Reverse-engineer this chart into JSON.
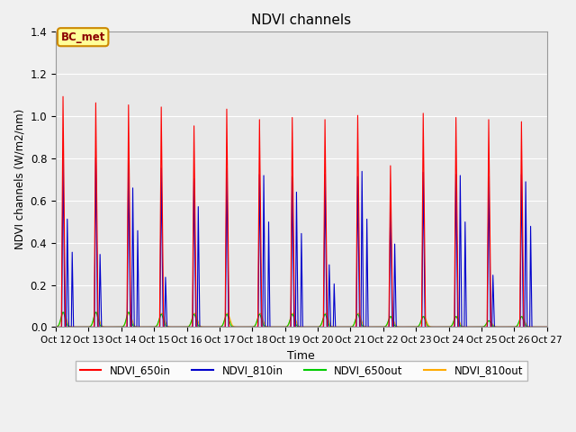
{
  "title": "NDVI channels",
  "xlabel": "Time",
  "ylabel": "NDVI channels (W/m2/nm)",
  "ylim": [
    0,
    1.4
  ],
  "background_color": "#e8e8e8",
  "grid_color": "#ffffff",
  "legend_labels": [
    "NDVI_650in",
    "NDVI_810in",
    "NDVI_650out",
    "NDVI_810out"
  ],
  "legend_colors": [
    "#ff0000",
    "#0000cc",
    "#00cc00",
    "#ffaa00"
  ],
  "annotation_text": "BC_met",
  "annotation_bg": "#ffff99",
  "annotation_border": "#cc8800",
  "xtick_labels": [
    "Oct 12",
    "Oct 13",
    "Oct 14",
    "Oct 15",
    "Oct 16",
    "Oct 17",
    "Oct 18",
    "Oct 19",
    "Oct 20",
    "Oct 21",
    "Oct 22",
    "Oct 23",
    "Oct 24",
    "Oct 25",
    "Oct 26",
    "Oct 27"
  ],
  "num_cycles": 15,
  "cycle_peaks_red": [
    1.1,
    1.07,
    1.06,
    1.05,
    0.96,
    1.04,
    0.99,
    1.0,
    0.99,
    1.01,
    0.77,
    1.02,
    1.0,
    0.99,
    0.98
  ],
  "cycle_peaks_blue": [
    0.81,
    0.81,
    0.79,
    0.76,
    0.71,
    0.76,
    0.73,
    0.72,
    0.73,
    0.72,
    0.6,
    0.74,
    0.73,
    0.72,
    0.73
  ],
  "cycle_secondary_blue": [
    0.52,
    0.35,
    0.67,
    0.24,
    0.58,
    0.0,
    0.73,
    0.65,
    0.3,
    0.75,
    0.4,
    0.0,
    0.73,
    0.25,
    0.7
  ],
  "cycle_peaks_green": [
    0.07,
    0.07,
    0.07,
    0.06,
    0.06,
    0.06,
    0.06,
    0.06,
    0.06,
    0.06,
    0.05,
    0.05,
    0.05,
    0.03,
    0.05
  ],
  "cycle_peaks_orange": [
    0.07,
    0.07,
    0.07,
    0.065,
    0.065,
    0.065,
    0.065,
    0.065,
    0.065,
    0.065,
    0.05,
    0.05,
    0.05,
    0.03,
    0.05
  ]
}
